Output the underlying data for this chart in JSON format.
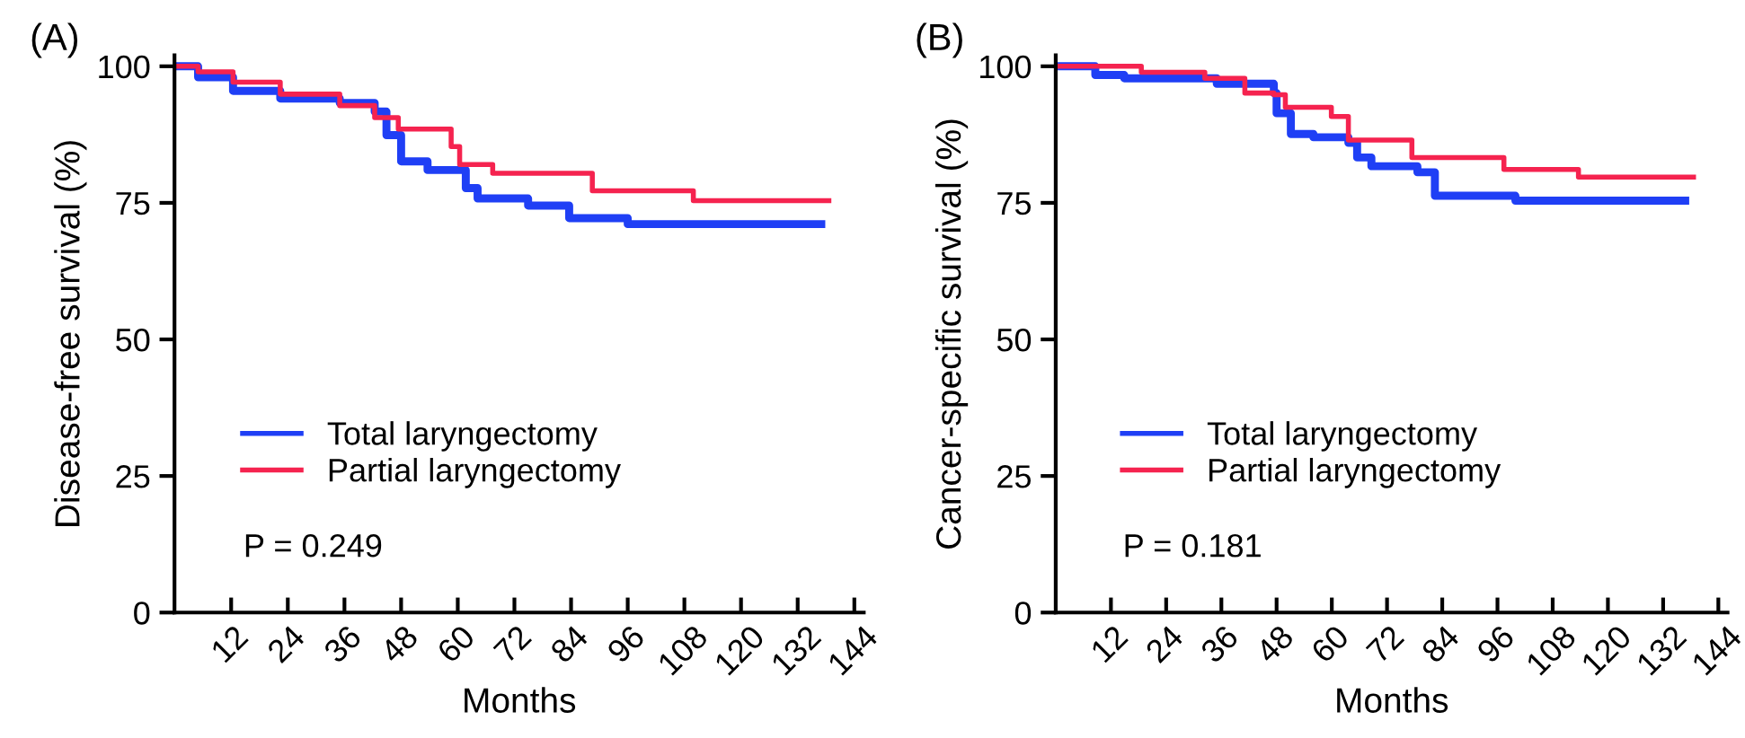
{
  "chart_data": [
    {
      "type": "step",
      "title": "(A)",
      "xlabel": "Months",
      "ylabel": "Disease-free survival (%)",
      "xlim": [
        0,
        146
      ],
      "ylim": [
        0,
        102
      ],
      "xticks": [
        12,
        24,
        36,
        48,
        60,
        72,
        84,
        96,
        108,
        120,
        132,
        144
      ],
      "yticks": [
        0,
        25,
        50,
        75,
        100
      ],
      "legend": "bottom left",
      "grid": false,
      "annotations": [
        "P = 0.249"
      ],
      "series": [
        {
          "name": "Total laryngectomy",
          "color": "#1f3ff5",
          "x": [
            0,
            5,
            12.4,
            22.4,
            35,
            42.4,
            44.9,
            48,
            53.6,
            59.9,
            61.7,
            64.2,
            74.9,
            83.6,
            96,
            137
          ],
          "values": [
            100,
            98,
            95.5,
            94.1,
            93.3,
            91.7,
            87.4,
            82.6,
            81,
            81,
            77.7,
            75.8,
            74.5,
            72.2,
            71.1,
            71.1
          ]
        },
        {
          "name": "Partial laryngectomy",
          "color": "#f5234f",
          "x": [
            0,
            5,
            12.4,
            22.4,
            35,
            42.4,
            47.4,
            58.6,
            60.4,
            67.4,
            88.5,
            109.9,
            138.6
          ],
          "values": [
            100,
            99,
            97.1,
            94.9,
            92.8,
            90.6,
            88.5,
            85.3,
            82,
            80.4,
            77.2,
            75.4,
            75.4
          ]
        }
      ]
    },
    {
      "type": "step",
      "title": "(B)",
      "xlabel": "Months",
      "ylabel": "Cancer-specific survival (%)",
      "xlim": [
        0,
        146
      ],
      "ylim": [
        0,
        102
      ],
      "xticks": [
        12,
        24,
        36,
        48,
        60,
        72,
        84,
        96,
        108,
        120,
        132,
        144
      ],
      "yticks": [
        0,
        25,
        50,
        75,
        100
      ],
      "legend": "bottom left",
      "grid": false,
      "annotations": [
        "P = 0.181"
      ],
      "series": [
        {
          "name": "Total laryngectomy",
          "color": "#1f3ff5",
          "x": [
            0,
            8.6,
            14.9,
            35,
            47.4,
            48,
            51.1,
            56,
            63.6,
            65.5,
            68.6,
            78.6,
            82.4,
            99.9,
            136.8
          ],
          "values": [
            100,
            98.4,
            97.8,
            96.8,
            95.1,
            91.4,
            87.6,
            87,
            86,
            83.3,
            81.7,
            80.6,
            76.3,
            75.4,
            75.4
          ]
        },
        {
          "name": "Partial laryngectomy",
          "color": "#f5234f",
          "x": [
            0,
            10,
            18.6,
            32.4,
            41.1,
            47.4,
            49.9,
            59.9,
            63.6,
            77.4,
            97.4,
            113.6,
            138.6
          ],
          "values": [
            100,
            100,
            98.9,
            97.8,
            95.1,
            94.8,
            92.5,
            90.8,
            86.5,
            83.3,
            81.1,
            79.7,
            79.7
          ]
        }
      ]
    }
  ]
}
